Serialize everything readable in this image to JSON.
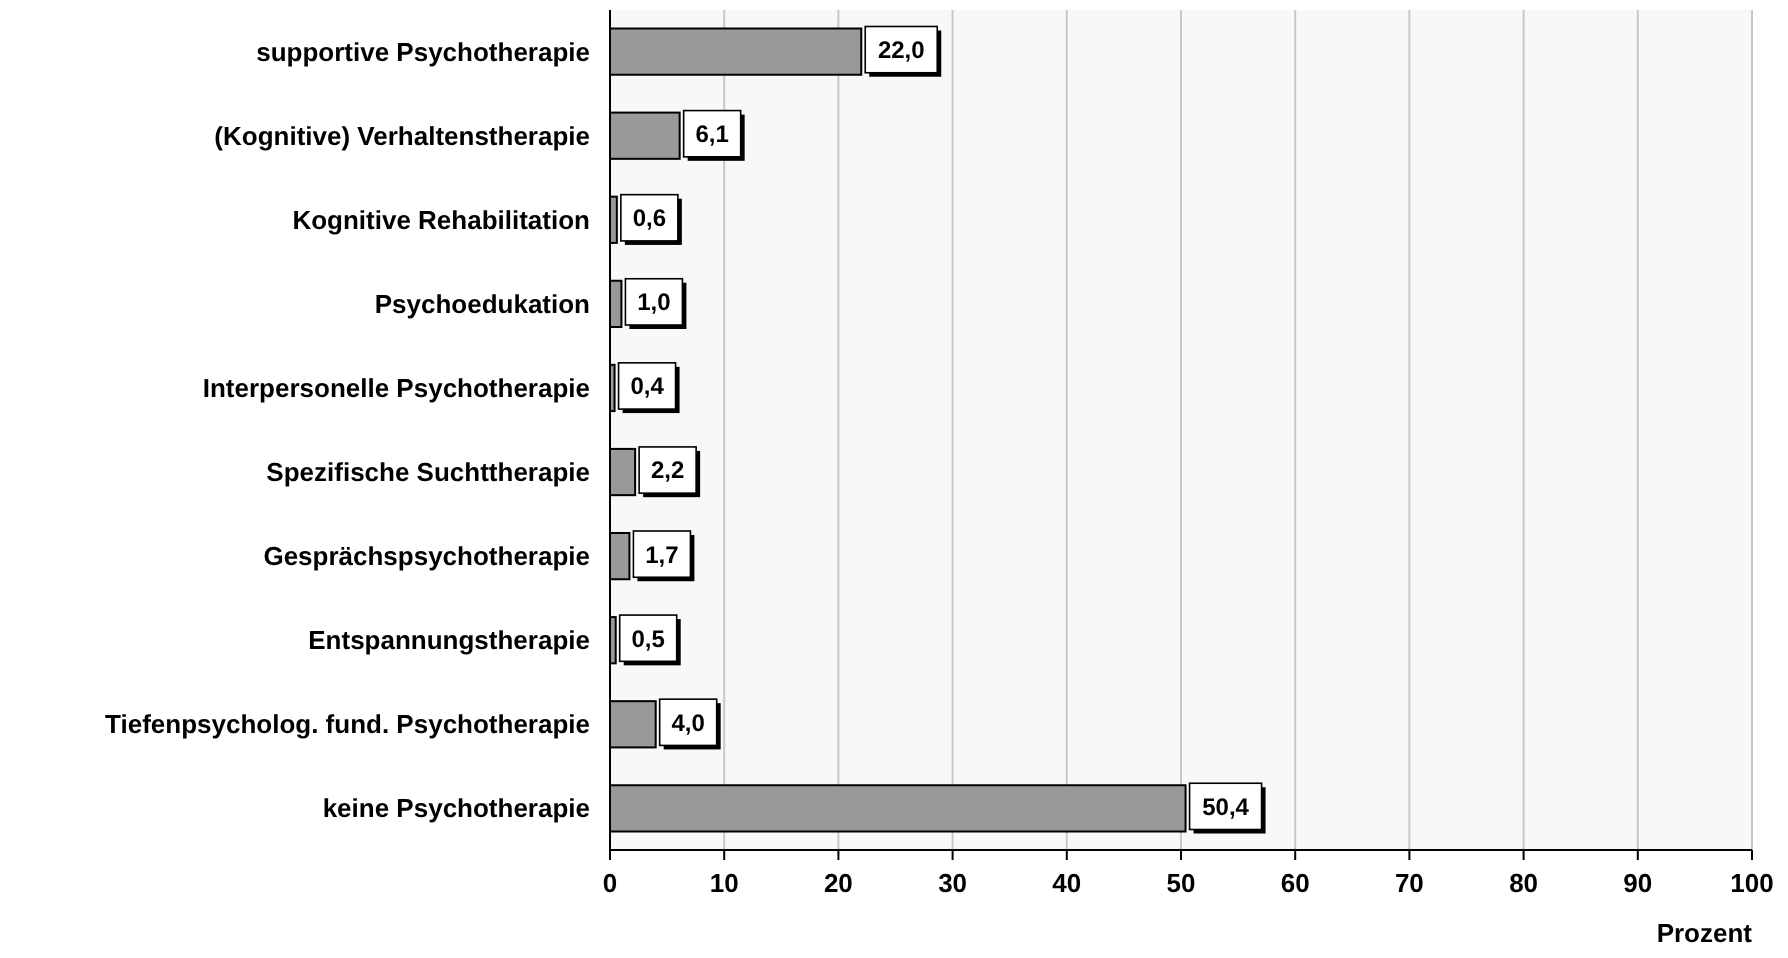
{
  "chart_data": {
    "type": "bar",
    "orientation": "horizontal",
    "xlabel": "Prozent",
    "categories": [
      "supportive Psychotherapie",
      "(Kognitive) Verhaltenstherapie",
      "Kognitive Rehabilitation",
      "Psychoedukation",
      "Interpersonelle Psychotherapie",
      "Spezifische Suchttherapie",
      "Gesprächspsychotherapie",
      "Entspannungstherapie",
      "Tiefenpsycholog. fund. Psychotherapie",
      "keine Psychotherapie"
    ],
    "values": [
      22.0,
      6.1,
      0.6,
      1.0,
      0.4,
      2.2,
      1.7,
      0.5,
      4.0,
      50.4
    ],
    "value_labels": [
      "22,0",
      "6,1",
      "0,6",
      "1,0",
      "0,4",
      "2,2",
      "1,7",
      "0,5",
      "4,0",
      "50,4"
    ],
    "color": "#999999",
    "xlim": [
      0,
      100
    ],
    "xticks": [
      0,
      10,
      20,
      30,
      40,
      50,
      60,
      70,
      80,
      90,
      100
    ],
    "grid": "x"
  }
}
